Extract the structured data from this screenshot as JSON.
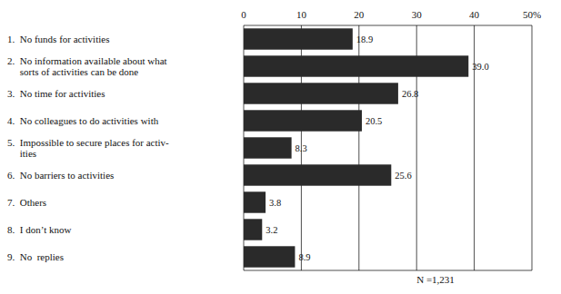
{
  "chart_data": {
    "type": "bar",
    "orientation": "horizontal",
    "categories": [
      "1.  No funds for activities",
      "2.  No information available about what\n     sorts of activities can be done",
      "3.  No time for activities",
      "4.  No colleagues to do activities with",
      "5.  Impossible to secure places for activ-\n     ities",
      "6.  No barriers to activities",
      "7.  Others",
      "8.  I don’t know",
      "9.  No  replies"
    ],
    "values": [
      18.9,
      39.0,
      26.8,
      20.5,
      8.3,
      25.6,
      3.8,
      3.2,
      8.9
    ],
    "value_labels": [
      "18.9",
      "39.0",
      "26.8",
      "20.5",
      "8.3",
      "25.6",
      "3.8",
      "3.2",
      "8.9"
    ],
    "data_labels": true,
    "color": "#2a2a2a",
    "xlim": [
      0,
      50
    ],
    "xticks": [
      0,
      10,
      20,
      30,
      40,
      {
        "value": 50,
        "label": "50%"
      }
    ],
    "grid": true,
    "annotation": "N =1,231"
  }
}
